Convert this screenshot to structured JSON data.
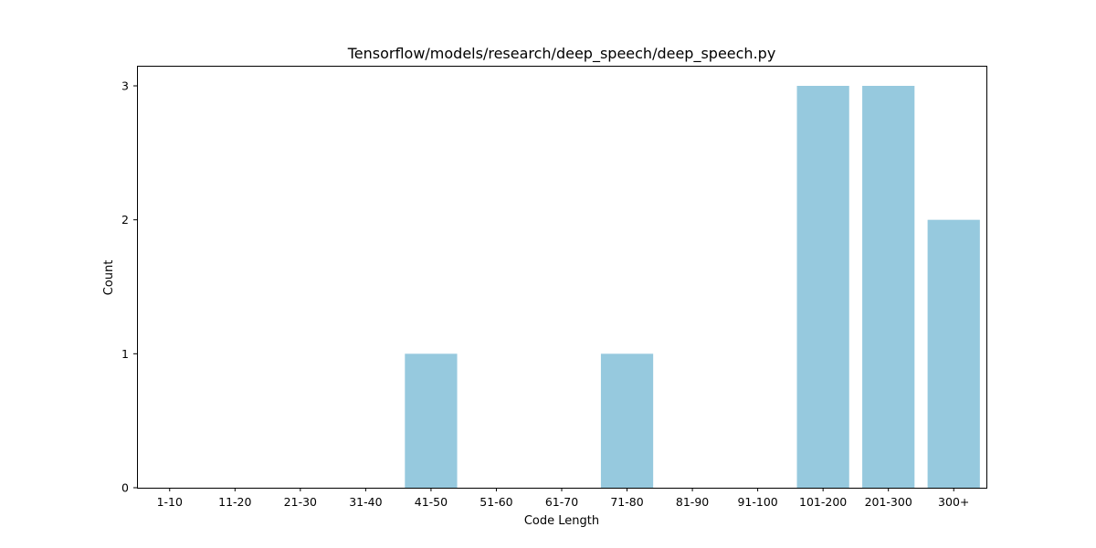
{
  "chart_data": {
    "type": "bar",
    "title": "Tensorflow/models/research/deep_speech/deep_speech.py",
    "xlabel": "Code Length",
    "ylabel": "Count",
    "categories": [
      "1-10",
      "11-20",
      "21-30",
      "31-40",
      "41-50",
      "51-60",
      "61-70",
      "71-80",
      "81-90",
      "91-100",
      "101-200",
      "201-300",
      "300+"
    ],
    "values": [
      0,
      0,
      0,
      0,
      1,
      0,
      0,
      1,
      0,
      0,
      3,
      3,
      2
    ],
    "ylim": [
      0,
      3.15
    ],
    "yticks": [
      "0",
      "1",
      "2",
      "3"
    ],
    "bar_color": "#96c9de",
    "grid": false
  }
}
